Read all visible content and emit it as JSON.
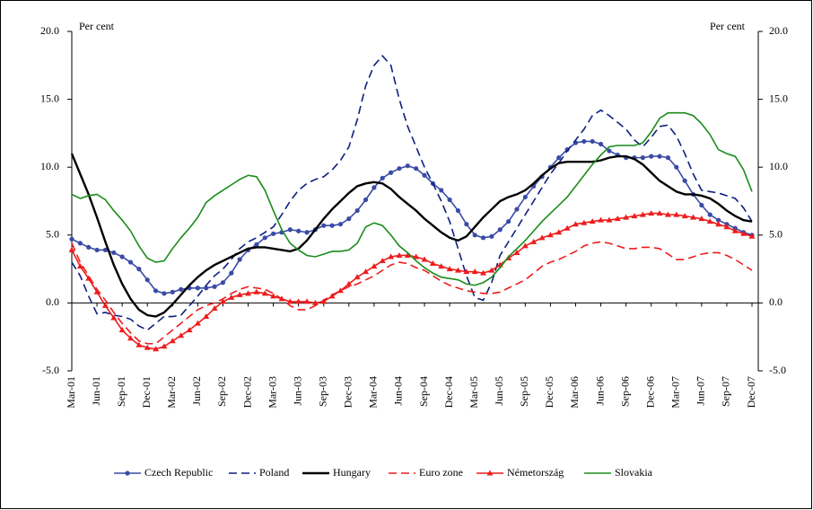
{
  "chart_data": {
    "type": "line",
    "y_label": "Per cent",
    "y2_label": "Per cent",
    "categories": [
      "Mar-01",
      null,
      null,
      "Jun-01",
      null,
      null,
      "Sep-01",
      null,
      null,
      "Dec-01",
      null,
      null,
      "Mar-02",
      null,
      null,
      "Jun-02",
      null,
      null,
      "Sep-02",
      null,
      null,
      "Dec-02",
      null,
      null,
      "Mar-03",
      null,
      null,
      "Jun-03",
      null,
      null,
      "Sep-03",
      null,
      null,
      "Dec-03",
      null,
      null,
      "Mar-04",
      null,
      null,
      "Jun-04",
      null,
      null,
      "Sep-04",
      null,
      null,
      "Dec-04",
      null,
      null,
      "Mar-05",
      null,
      null,
      "Jun-05",
      null,
      null,
      "Sep-05",
      null,
      null,
      "Dec-05",
      null,
      null,
      "Mar-06",
      null,
      null,
      "Jun-06",
      null,
      null,
      "Sep-06",
      null,
      null,
      "Dec-06",
      null,
      null,
      "Mar-07",
      null,
      null,
      "Jun-07",
      null,
      null,
      "Sep-07",
      null,
      null,
      "Dec-07"
    ],
    "series": [
      {
        "name": "Czech Republic",
        "color": "#3a4ba6",
        "style": "solid",
        "marker": "circle",
        "values": [
          4.7,
          4.4,
          4.1,
          3.9,
          3.9,
          3.7,
          3.4,
          3.0,
          2.5,
          1.7,
          0.9,
          0.7,
          0.8,
          1.0,
          1.1,
          1.1,
          1.1,
          1.2,
          1.5,
          2.2,
          3.2,
          3.9,
          4.3,
          4.8,
          5.1,
          5.2,
          5.4,
          5.3,
          5.2,
          5.4,
          5.7,
          5.7,
          5.8,
          6.2,
          6.8,
          7.6,
          8.5,
          9.2,
          9.6,
          9.9,
          10.1,
          9.9,
          9.4,
          8.8,
          8.3,
          7.6,
          6.8,
          5.8,
          5.0,
          4.8,
          4.9,
          5.4,
          6.0,
          6.9,
          7.8,
          8.6,
          9.3,
          10.0,
          10.7,
          11.3,
          11.8,
          11.9,
          11.9,
          11.7,
          11.2,
          10.9,
          10.7,
          10.7,
          10.7,
          10.8,
          10.8,
          10.7,
          10.0,
          9.0,
          8.0,
          7.2,
          6.5,
          6.1,
          5.8,
          5.5,
          5.2,
          5.0
        ]
      },
      {
        "name": "Poland",
        "color": "#0d1f80",
        "style": "dashed",
        "marker": "none",
        "values": [
          3.0,
          2.0,
          0.5,
          -0.8,
          -0.7,
          -0.9,
          -1.0,
          -1.2,
          -1.7,
          -2.0,
          -1.5,
          -1.0,
          -1.0,
          -0.9,
          -0.2,
          0.5,
          1.3,
          2.0,
          2.5,
          3.2,
          4.0,
          4.5,
          4.8,
          5.2,
          5.6,
          6.5,
          7.5,
          8.3,
          8.8,
          9.1,
          9.3,
          9.8,
          10.5,
          11.5,
          13.5,
          16.0,
          17.5,
          18.2,
          17.5,
          15.0,
          13.0,
          11.5,
          10.0,
          8.8,
          7.5,
          6.0,
          4.0,
          2.0,
          0.4,
          0.2,
          1.5,
          3.5,
          4.5,
          5.5,
          6.5,
          7.5,
          8.5,
          9.5,
          10.3,
          11.2,
          12.0,
          12.8,
          13.8,
          14.2,
          13.8,
          13.3,
          12.8,
          12.0,
          11.5,
          12.2,
          13.0,
          13.1,
          12.3,
          11.0,
          9.5,
          8.3,
          8.2,
          8.1,
          7.9,
          7.7,
          7.0,
          6.0
        ]
      },
      {
        "name": "Hungary",
        "color": "#000000",
        "style": "solid",
        "marker": "none",
        "values": [
          11.0,
          9.5,
          8.0,
          6.3,
          4.5,
          2.8,
          1.4,
          0.3,
          -0.5,
          -0.9,
          -1.0,
          -0.7,
          -0.1,
          0.6,
          1.3,
          1.9,
          2.4,
          2.8,
          3.1,
          3.4,
          3.7,
          4.0,
          4.1,
          4.1,
          4.0,
          3.9,
          3.8,
          4.0,
          4.6,
          5.4,
          6.2,
          6.9,
          7.5,
          8.1,
          8.6,
          8.8,
          8.9,
          8.8,
          8.4,
          7.8,
          7.3,
          6.8,
          6.2,
          5.7,
          5.2,
          4.8,
          4.6,
          4.9,
          5.6,
          6.3,
          6.9,
          7.5,
          7.8,
          8.0,
          8.3,
          8.8,
          9.4,
          9.9,
          10.3,
          10.4,
          10.4,
          10.4,
          10.4,
          10.5,
          10.7,
          10.8,
          10.8,
          10.6,
          10.2,
          9.6,
          9.0,
          8.6,
          8.2,
          8.0,
          8.0,
          7.9,
          7.7,
          7.3,
          6.8,
          6.4,
          6.1,
          6.0
        ]
      },
      {
        "name": "Euro zone",
        "color": "#ee1c1c",
        "style": "dashed",
        "marker": "none",
        "values": [
          4.4,
          3.0,
          2.0,
          1.0,
          0.2,
          -0.7,
          -1.5,
          -2.2,
          -2.8,
          -3.0,
          -3.0,
          -2.5,
          -2.0,
          -1.5,
          -1.0,
          -0.5,
          -0.2,
          0.0,
          0.3,
          0.7,
          1.0,
          1.2,
          1.1,
          1.0,
          0.7,
          0.3,
          -0.2,
          -0.5,
          -0.5,
          -0.2,
          0.2,
          0.6,
          0.9,
          1.2,
          1.4,
          1.7,
          2.0,
          2.4,
          2.8,
          3.0,
          2.9,
          2.6,
          2.4,
          2.0,
          1.6,
          1.3,
          1.1,
          0.9,
          0.8,
          0.7,
          0.7,
          0.8,
          1.1,
          1.4,
          1.7,
          2.2,
          2.7,
          3.0,
          3.2,
          3.5,
          3.8,
          4.2,
          4.4,
          4.5,
          4.4,
          4.2,
          4.0,
          4.0,
          4.1,
          4.1,
          4.0,
          3.6,
          3.2,
          3.2,
          3.4,
          3.6,
          3.7,
          3.7,
          3.5,
          3.2,
          2.8,
          2.4
        ]
      },
      {
        "name": "Németország",
        "color": "#ee1c1c",
        "style": "solid",
        "marker": "triangle",
        "values": [
          3.9,
          2.7,
          1.8,
          0.8,
          -0.2,
          -1.1,
          -2.0,
          -2.6,
          -3.1,
          -3.3,
          -3.4,
          -3.2,
          -2.8,
          -2.4,
          -2.0,
          -1.5,
          -1.0,
          -0.4,
          0.1,
          0.4,
          0.6,
          0.7,
          0.8,
          0.7,
          0.5,
          0.3,
          0.1,
          0.1,
          0.1,
          0.0,
          0.1,
          0.5,
          0.9,
          1.4,
          1.9,
          2.3,
          2.7,
          3.1,
          3.4,
          3.5,
          3.5,
          3.4,
          3.2,
          2.9,
          2.7,
          2.5,
          2.4,
          2.3,
          2.3,
          2.2,
          2.4,
          2.8,
          3.3,
          3.7,
          4.2,
          4.5,
          4.8,
          5.0,
          5.2,
          5.5,
          5.8,
          5.9,
          6.0,
          6.1,
          6.1,
          6.2,
          6.3,
          6.4,
          6.5,
          6.6,
          6.6,
          6.5,
          6.5,
          6.4,
          6.3,
          6.2,
          6.0,
          5.8,
          5.6,
          5.3,
          5.1,
          4.9
        ]
      },
      {
        "name": "Slovakia",
        "color": "#1a8c1a",
        "style": "solid",
        "marker": "none",
        "values": [
          8.0,
          7.7,
          7.9,
          8.0,
          7.6,
          6.8,
          6.1,
          5.3,
          4.2,
          3.3,
          3.0,
          3.1,
          4.0,
          4.8,
          5.5,
          6.3,
          7.4,
          7.9,
          8.3,
          8.7,
          9.1,
          9.4,
          9.3,
          8.3,
          6.8,
          5.4,
          4.4,
          3.9,
          3.5,
          3.4,
          3.6,
          3.8,
          3.8,
          3.9,
          4.4,
          5.6,
          5.9,
          5.7,
          5.0,
          4.2,
          3.7,
          3.1,
          2.6,
          2.2,
          1.9,
          1.8,
          1.7,
          1.4,
          1.3,
          1.5,
          1.9,
          2.6,
          3.4,
          4.0,
          4.6,
          5.3,
          6.0,
          6.6,
          7.2,
          7.8,
          8.6,
          9.4,
          10.2,
          10.9,
          11.5,
          11.6,
          11.6,
          11.6,
          11.8,
          12.6,
          13.6,
          14.0,
          14.0,
          14.0,
          13.8,
          13.2,
          12.4,
          11.3,
          11.0,
          10.8,
          9.8,
          8.2
        ]
      }
    ],
    "ylim": [
      -5,
      20
    ],
    "yticks": [
      {
        "value": -5,
        "label": "-5.0"
      },
      {
        "value": 0,
        "label": "0.0"
      },
      {
        "value": 5,
        "label": "5.0"
      },
      {
        "value": 10,
        "label": "10.0"
      },
      {
        "value": 15,
        "label": "15.0"
      },
      {
        "value": 20,
        "label": "20.0"
      }
    ],
    "y2lim": [
      -5,
      20
    ],
    "y2ticks": [
      {
        "value": -5,
        "label": "-5.0"
      },
      {
        "value": 0,
        "label": "0.0"
      },
      {
        "value": 5,
        "label": "5.0"
      },
      {
        "value": 10,
        "label": "10.0"
      },
      {
        "value": 15,
        "label": "15.0"
      },
      {
        "value": 20,
        "label": "20.0"
      }
    ],
    "grid": false,
    "legend": "bottom"
  }
}
